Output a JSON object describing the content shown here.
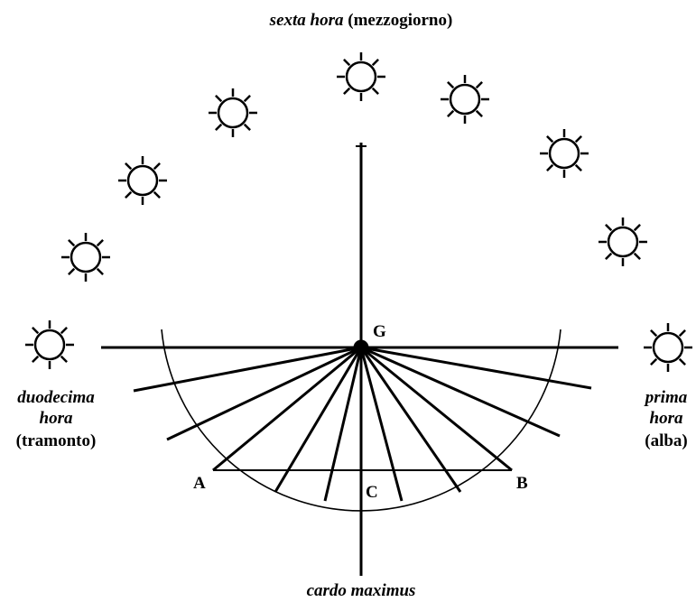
{
  "top_label": {
    "italic": "sexta hora",
    "plain": "(mezzogiorno)"
  },
  "left_label": {
    "lines": [
      "duodecima",
      "hora"
    ],
    "plain": "(tramonto)"
  },
  "right_label": {
    "lines": [
      "prima",
      "hora"
    ],
    "plain": "(alba)"
  },
  "points": {
    "G": "G",
    "A": "A",
    "B": "B",
    "C": "C"
  },
  "bottom_label": "cardo maximus"
}
